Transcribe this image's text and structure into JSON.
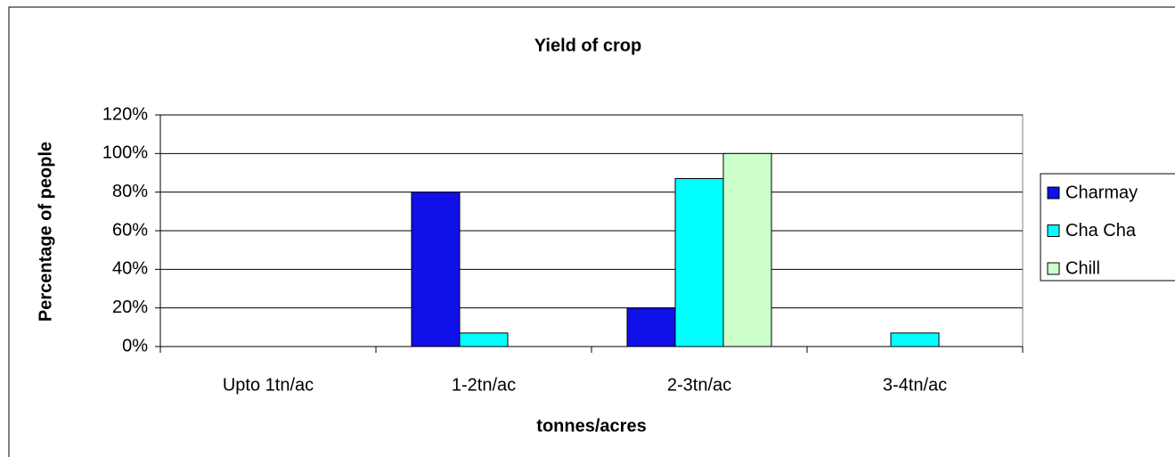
{
  "chart_data": {
    "type": "bar",
    "title": "Yield of crop",
    "x_label": "tonnes/acres",
    "y_label": "Percentage of people",
    "categories": [
      "Upto 1tn/ac",
      "1-2tn/ac",
      "2-3tn/ac",
      "3-4tn/ac"
    ],
    "series": [
      {
        "name": "Charmay",
        "color": "#1010e8",
        "values": [
          0,
          80,
          20,
          0
        ]
      },
      {
        "name": "Cha Cha",
        "color": "#00ffff",
        "values": [
          0,
          7,
          87,
          7
        ]
      },
      {
        "name": "Chill",
        "color": "#ccffcc",
        "values": [
          0,
          0,
          100,
          0
        ]
      }
    ],
    "ylim": [
      0,
      120
    ],
    "yticks": [
      {
        "value": 0,
        "label": "0%"
      },
      {
        "value": 20,
        "label": "20%"
      },
      {
        "value": 40,
        "label": "40%"
      },
      {
        "value": 60,
        "label": "60%"
      },
      {
        "value": 80,
        "label": "80%"
      },
      {
        "value": 100,
        "label": "100%"
      },
      {
        "value": 120,
        "label": "120%"
      }
    ],
    "grid": true,
    "legend": "right"
  }
}
